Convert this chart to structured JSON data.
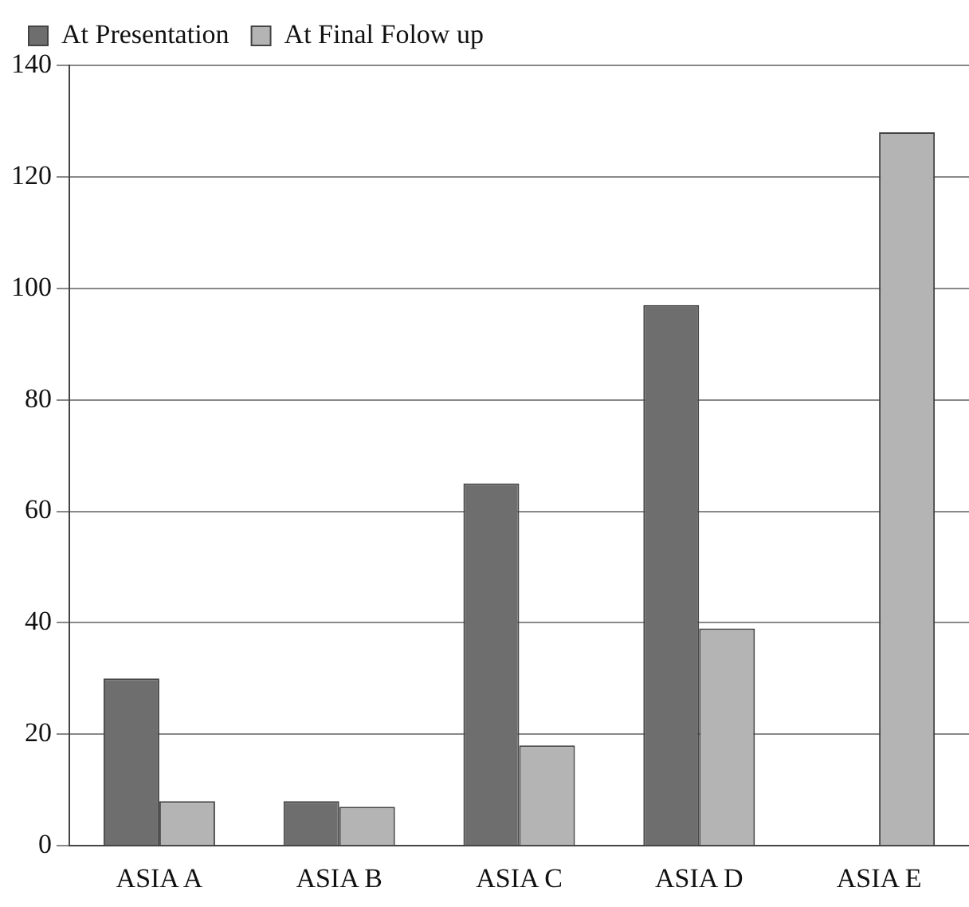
{
  "chart_data": {
    "type": "bar",
    "categories": [
      "ASIA A",
      "ASIA B",
      "ASIA C",
      "ASIA D",
      "ASIA E"
    ],
    "series": [
      {
        "name": "At Presentation",
        "color": "#6e6e6e",
        "values": [
          30,
          8,
          65,
          97,
          null
        ]
      },
      {
        "name": "At Final Folow up",
        "color": "#b4b4b4",
        "values": [
          8,
          7,
          18,
          39,
          128
        ]
      }
    ],
    "ylim": [
      0,
      140
    ],
    "yticks": [
      0,
      20,
      40,
      60,
      80,
      100,
      120,
      140
    ],
    "grid": "y",
    "legend": "top left"
  }
}
